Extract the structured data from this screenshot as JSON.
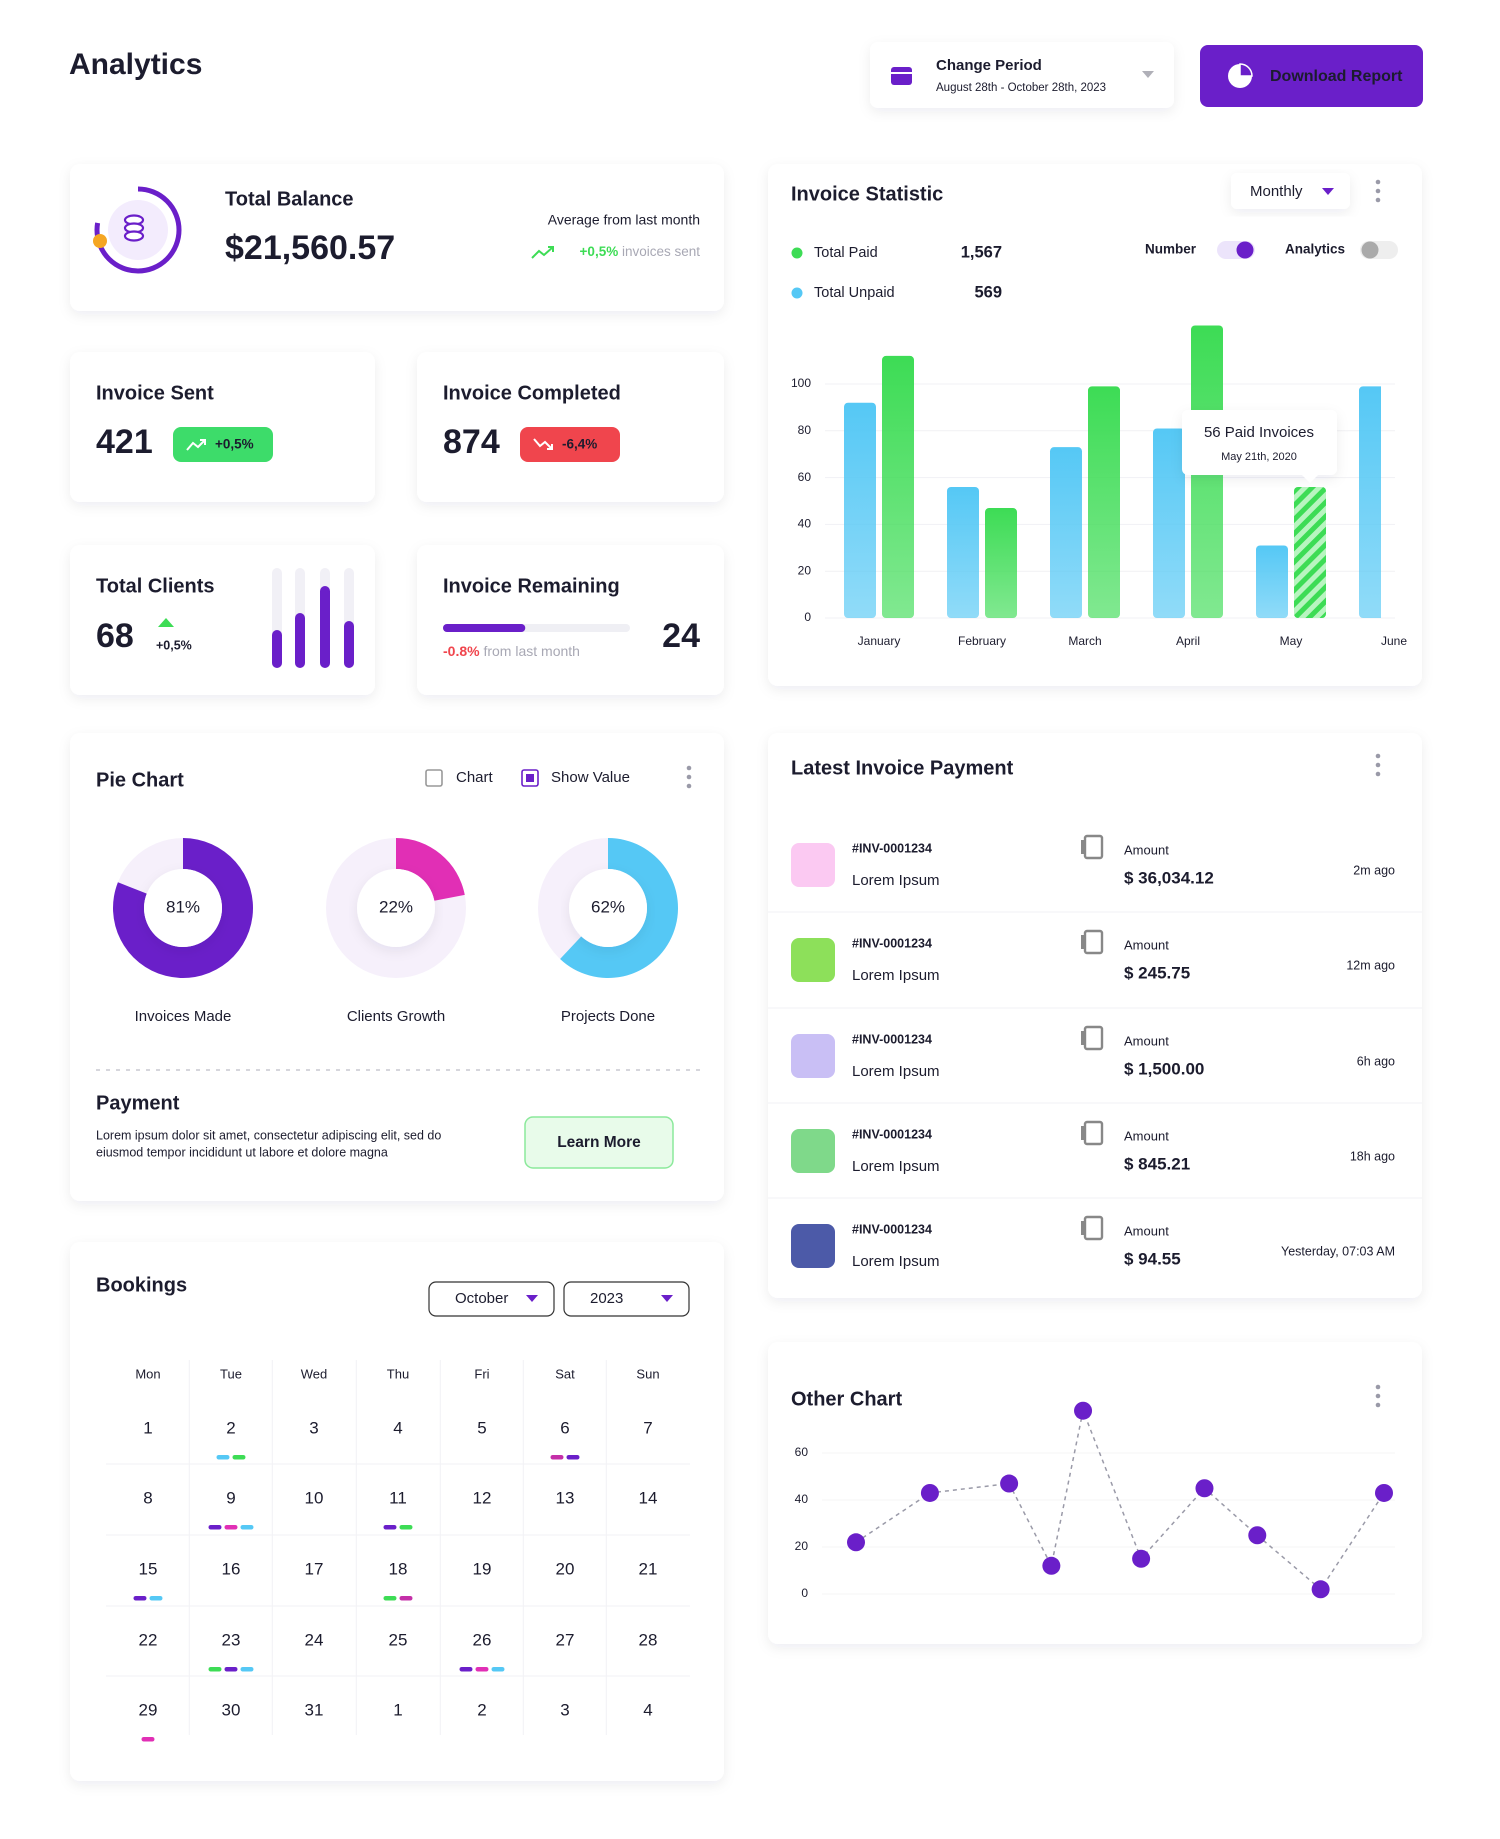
{
  "header": {
    "title": "Analytics",
    "period_label": "Change Period",
    "period": "August 28th - October 28th, 2023",
    "download": "Download Report"
  },
  "balance": {
    "title": "Total Balance",
    "value": "$21,560.57",
    "average_label": "Average from last month",
    "change": "+0,5%",
    "change_note": " invoices sent"
  },
  "invoice_sent": {
    "title": "Invoice Sent",
    "value": 421,
    "badge": "+0,5%"
  },
  "invoice_completed": {
    "title": "Invoice Completed",
    "value": 874,
    "badge": "-6,4%"
  },
  "total_clients": {
    "title": "Total Clients",
    "value": 68,
    "change": "+0,5%",
    "bars": [
      38,
      55,
      82,
      47
    ],
    "color": "#6a1fc9"
  },
  "invoice_remaining": {
    "title": "Invoice Remaining",
    "value": 24,
    "progress": 44,
    "change": "-0.8%",
    "change_note": " from last month",
    "color": "#6a1fc9"
  },
  "invoice_statistic": {
    "type": "bar",
    "title": "Invoice Statistic",
    "period": "Monthly",
    "legend": [
      {
        "name": "Total Paid",
        "value": "1,567"
      },
      {
        "name": "Total Unpaid",
        "value": "569"
      }
    ],
    "toggles": [
      {
        "label": "Number",
        "on": true
      },
      {
        "label": "Analytics",
        "on": false
      }
    ],
    "categories": [
      "January",
      "February",
      "March",
      "April",
      "May",
      "June"
    ],
    "series": [
      {
        "name": "Total Paid",
        "color": "#3ddc55",
        "values": [
          112,
          47,
          99,
          125,
          56,
          null
        ],
        "value_labels": [
          null,
          null,
          null,
          null,
          "56 Paid Invoices",
          null
        ]
      },
      {
        "name": "Total Unpaid",
        "color": "#55c8f5",
        "values": [
          92,
          56,
          73,
          81,
          31,
          99
        ]
      }
    ],
    "annotation": "May 21th, 2020",
    "ylim": [
      0,
      125
    ],
    "yticks": [
      0,
      20,
      40,
      60,
      80,
      100
    ],
    "grid": true
  },
  "pie_chart": {
    "title": "Pie Chart",
    "options": [
      {
        "label": "Chart",
        "checked": false
      },
      {
        "label": "Show Value",
        "checked": true
      }
    ],
    "charts": [
      {
        "type": "donut",
        "name": "Invoices Made",
        "value": 81,
        "value_label": "81%",
        "color": "#6a1fc9"
      },
      {
        "type": "donut",
        "name": "Clients Growth",
        "value": 22,
        "value_label": "22%",
        "color": "#e12fb5"
      },
      {
        "type": "donut",
        "name": "Projects Done",
        "value": 62,
        "value_label": "62%",
        "color": "#55c8f5"
      }
    ]
  },
  "payment": {
    "title": "Payment",
    "lines": [
      "Lorem ipsum dolor sit amet, consectetur adipiscing elit, sed do",
      "eiusmod tempor incididunt ut labore et dolore magna"
    ],
    "button": "Learn More"
  },
  "bookings": {
    "title": "Bookings",
    "month": "October",
    "year": "2023",
    "weekdays": [
      "Mon",
      "Tue",
      "Wed",
      "Thu",
      "Fri",
      "Sat",
      "Sun"
    ],
    "weeks": [
      [
        1,
        2,
        3,
        4,
        5,
        6,
        7
      ],
      [
        8,
        9,
        10,
        11,
        12,
        13,
        14
      ],
      [
        15,
        16,
        17,
        18,
        19,
        20,
        21
      ],
      [
        22,
        23,
        24,
        25,
        26,
        27,
        28
      ],
      [
        29,
        30,
        31
      ]
    ],
    "trailing_days": [
      1,
      2,
      3,
      4
    ],
    "events": [
      {
        "day": 2,
        "colors": [
          "#55c8f5",
          "#3ddc55"
        ]
      },
      {
        "day": 6,
        "colors": [
          "#c42fa8",
          "#6a1fc9"
        ]
      },
      {
        "day": 9,
        "colors": [
          "#6a1fc9",
          "#e12fb5",
          "#55c8f5"
        ]
      },
      {
        "day": 11,
        "colors": [
          "#6a1fc9",
          "#3ddc55"
        ]
      },
      {
        "day": 15,
        "colors": [
          "#6a1fc9",
          "#55c8f5"
        ]
      },
      {
        "day": 18,
        "colors": [
          "#3ddc55",
          "#c42fa8"
        ]
      },
      {
        "day": 23,
        "colors": [
          "#3ddc55",
          "#6a1fc9",
          "#55c8f5"
        ]
      },
      {
        "day": 26,
        "colors": [
          "#6a1fc9",
          "#e12fb5",
          "#55c8f5"
        ]
      },
      {
        "day": 29,
        "colors": [
          "#e12fb5"
        ]
      }
    ]
  },
  "latest_invoice": {
    "title": "Latest Invoice Payment",
    "rows": [
      {
        "color": "#fbc9f2",
        "id": "#INV-0001234",
        "name": "Lorem Ipsum",
        "amount_label": "Amount",
        "amount": "$ 36,034.12",
        "time": "2m ago"
      },
      {
        "color": "#8de05a",
        "id": "#INV-0001234",
        "name": "Lorem Ipsum",
        "amount_label": "Amount",
        "amount": "$ 245.75",
        "time": "12m ago"
      },
      {
        "color": "#c9bff5",
        "id": "#INV-0001234",
        "name": "Lorem Ipsum",
        "amount_label": "Amount",
        "amount": "$ 1,500.00",
        "time": "6h ago"
      },
      {
        "color": "#7fd98a",
        "id": "#INV-0001234",
        "name": "Lorem Ipsum",
        "amount_label": "Amount",
        "amount": "$ 845.21",
        "time": "18h ago"
      },
      {
        "color": "#4c5aa8",
        "id": "#INV-0001234",
        "name": "Lorem Ipsum",
        "amount_label": "Amount",
        "amount": "$ 94.55",
        "time": "Yesterday, 07:03 AM"
      }
    ]
  },
  "other_chart": {
    "type": "line",
    "title": "Other Chart",
    "color": "#6a1fc9",
    "x": [
      0,
      14,
      29,
      37,
      43,
      54,
      66,
      76,
      88,
      100
    ],
    "values": [
      22,
      43,
      47,
      12,
      78,
      15,
      45,
      25,
      2,
      43
    ],
    "xlim": [
      0,
      100
    ],
    "ylim": [
      0,
      80
    ],
    "yticks": [
      0,
      20,
      40,
      60
    ],
    "grid": true
  }
}
